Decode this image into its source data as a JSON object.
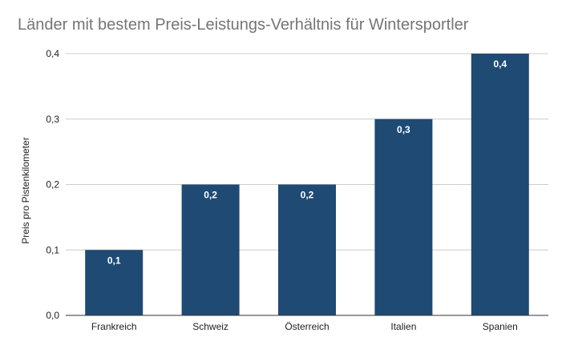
{
  "chart_data": {
    "type": "bar",
    "title": "Länder mit bestem Preis-Leistungs-Verhältnis für Wintersportler",
    "xlabel": "",
    "ylabel": "Preis pro Pistenkilometer",
    "categories": [
      "Frankreich",
      "Schweiz",
      "Österreich",
      "Italien",
      "Spanien"
    ],
    "values": [
      0.1,
      0.2,
      0.2,
      0.3,
      0.4
    ],
    "data_labels": [
      "0,1",
      "0,2",
      "0,2",
      "0,3",
      "0,4"
    ],
    "ylim": [
      0,
      0.4
    ],
    "yticks": [
      0,
      0.1,
      0.2,
      0.3,
      0.4
    ],
    "ytick_labels": [
      "0,0",
      "0,1",
      "0,2",
      "0,3",
      "0,4"
    ],
    "grid": true,
    "legend": "none",
    "bar_color": "#1f4a73",
    "grid_color": "#cccccc",
    "axis_color": "#333333"
  }
}
